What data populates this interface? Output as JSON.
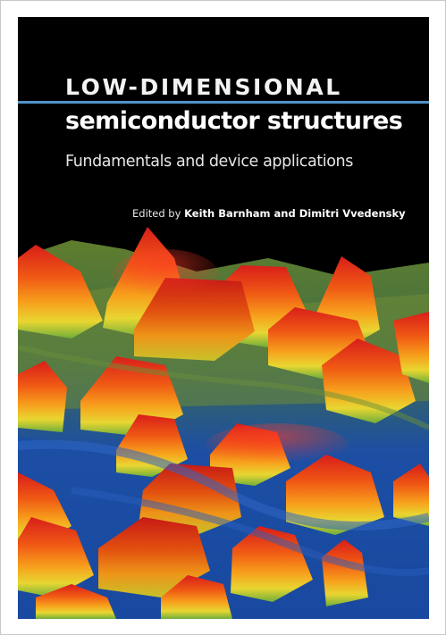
{
  "cover": {
    "title_line1": "LOW-DIMENSIONAL",
    "title_line2": "semiconductor structures",
    "subtitle": "Fundamentals and device applications",
    "edited_by": "Edited by",
    "editors": "Keith Barnham and Dimitri Vvedensky",
    "colors": {
      "background": "#000000",
      "rule": "#4f93c8",
      "text": "#ffffff"
    },
    "illustration": "quantum-dot-surface-render"
  }
}
